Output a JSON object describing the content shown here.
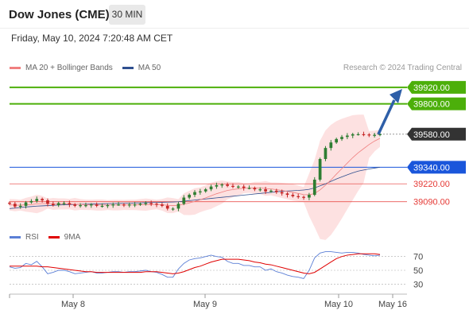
{
  "header": {
    "instrument": "Dow Jones (CME)",
    "interval": "30 MIN",
    "timestamp": "Friday, May 10, 2024 7:20:48 AM CET"
  },
  "legend": {
    "items": [
      {
        "label": "MA 20 + Bollinger Bands",
        "color": "#f08080"
      },
      {
        "label": "MA 50",
        "color": "#2f4f8f"
      }
    ],
    "credit": "Research © 2024 Trading Central"
  },
  "rsi_legend": {
    "items": [
      {
        "label": "RSI",
        "color": "#5b7fd6"
      },
      {
        "label": "9MA",
        "color": "#e00000"
      }
    ]
  },
  "colors": {
    "up": "#2e7d32",
    "down": "#c62828",
    "target": "#4caf0a",
    "current": "#333333",
    "support": "#1a56db",
    "minor": "#e53935",
    "arrow": "#2e5fa8"
  },
  "chart_data": [
    {
      "type": "line",
      "x_ticks": [
        "May 8",
        "May 9",
        "May 10",
        "May 16"
      ],
      "price_levels": [
        {
          "value": 39920.0,
          "label": "39920.00",
          "kind": "target"
        },
        {
          "value": 39800.0,
          "label": "39800.00",
          "kind": "target"
        },
        {
          "value": 39580.0,
          "label": "39580.00",
          "kind": "current"
        },
        {
          "value": 39340.0,
          "label": "39340.00",
          "kind": "support"
        },
        {
          "value": 39220.0,
          "label": "39220.00",
          "kind": "minor"
        },
        {
          "value": 39090.0,
          "label": "39090.00",
          "kind": "minor"
        }
      ],
      "ylim": [
        38950,
        40000
      ],
      "price": [
        39075,
        39055,
        39060,
        39085,
        39095,
        39110,
        39100,
        39075,
        39065,
        39080,
        39080,
        39070,
        39060,
        39065,
        39065,
        39070,
        39060,
        39060,
        39065,
        39070,
        39070,
        39065,
        39070,
        39070,
        39075,
        39080,
        39075,
        39070,
        39060,
        39040,
        39040,
        39075,
        39120,
        39140,
        39160,
        39165,
        39180,
        39200,
        39210,
        39215,
        39205,
        39200,
        39200,
        39190,
        39190,
        39180,
        39180,
        39165,
        39170,
        39160,
        39150,
        39140,
        39130,
        39125,
        39120,
        39140,
        39250,
        39400,
        39480,
        39520,
        39545,
        39560,
        39570,
        39580,
        39580,
        39578,
        39575,
        39575,
        39580
      ],
      "ma20": [
        39068,
        39065,
        39065,
        39068,
        39070,
        39074,
        39076,
        39076,
        39074,
        39074,
        39074,
        39073,
        39072,
        39070,
        39068,
        39067,
        39066,
        39066,
        39066,
        39066,
        39066,
        39067,
        39067,
        39067,
        39068,
        39069,
        39070,
        39070,
        39068,
        39064,
        39062,
        39064,
        39072,
        39081,
        39092,
        39104,
        39118,
        39133,
        39148,
        39160,
        39172,
        39178,
        39184,
        39188,
        39190,
        39190,
        39190,
        39186,
        39183,
        39178,
        39172,
        39165,
        39158,
        39150,
        39142,
        39140,
        39150,
        39176,
        39210,
        39248,
        39290,
        39330,
        39370,
        39410,
        39445,
        39475,
        39505,
        39530,
        39550
      ],
      "ma50": [
        39040,
        39044,
        39048,
        39052,
        39055,
        39058,
        39060,
        39062,
        39064,
        39066,
        39068,
        39069,
        39070,
        39071,
        39072,
        39073,
        39074,
        39075,
        39076,
        39077,
        39078,
        39079,
        39080,
        39081,
        39082,
        39083,
        39084,
        39085,
        39086,
        39087,
        39088,
        39090,
        39094,
        39098,
        39102,
        39106,
        39110,
        39114,
        39118,
        39122,
        39126,
        39130,
        39134,
        39138,
        39142,
        39146,
        39150,
        39154,
        39158,
        39162,
        39166,
        39168,
        39170,
        39172,
        39175,
        39180,
        39190,
        39205,
        39220,
        39238,
        39255,
        39270,
        39285,
        39300,
        39312,
        39320,
        39328,
        39334,
        39340
      ],
      "projection": {
        "from": 39580,
        "to": 39920
      }
    },
    {
      "type": "line",
      "name": "RSI",
      "yticks": [
        70,
        50,
        30
      ],
      "ylim": [
        20,
        80
      ],
      "rsi": [
        55,
        53,
        54,
        60,
        58,
        63,
        55,
        45,
        47,
        50,
        50,
        48,
        45,
        46,
        47,
        48,
        46,
        46,
        47,
        48,
        48,
        47,
        48,
        48,
        49,
        50,
        48,
        47,
        44,
        40,
        40,
        52,
        60,
        65,
        67,
        68,
        70,
        72,
        70,
        69,
        63,
        60,
        60,
        57,
        57,
        55,
        55,
        50,
        52,
        48,
        46,
        43,
        41,
        40,
        38,
        50,
        68,
        75,
        77,
        77,
        76,
        75,
        76,
        76,
        75,
        73,
        72,
        71,
        72
      ],
      "ma9": [
        56,
        56,
        56,
        56,
        56,
        56,
        55,
        55,
        54,
        53,
        52,
        51,
        50,
        49,
        48,
        48,
        47,
        47,
        47,
        47,
        47,
        47,
        47,
        47,
        47,
        48,
        48,
        48,
        47,
        46,
        45,
        46,
        48,
        51,
        54,
        56,
        59,
        62,
        64,
        66,
        66,
        66,
        66,
        65,
        64,
        62,
        61,
        59,
        58,
        56,
        54,
        52,
        50,
        48,
        46,
        45,
        47,
        52,
        57,
        62,
        67,
        70,
        72,
        73,
        74,
        74,
        74,
        74,
        73
      ]
    }
  ]
}
